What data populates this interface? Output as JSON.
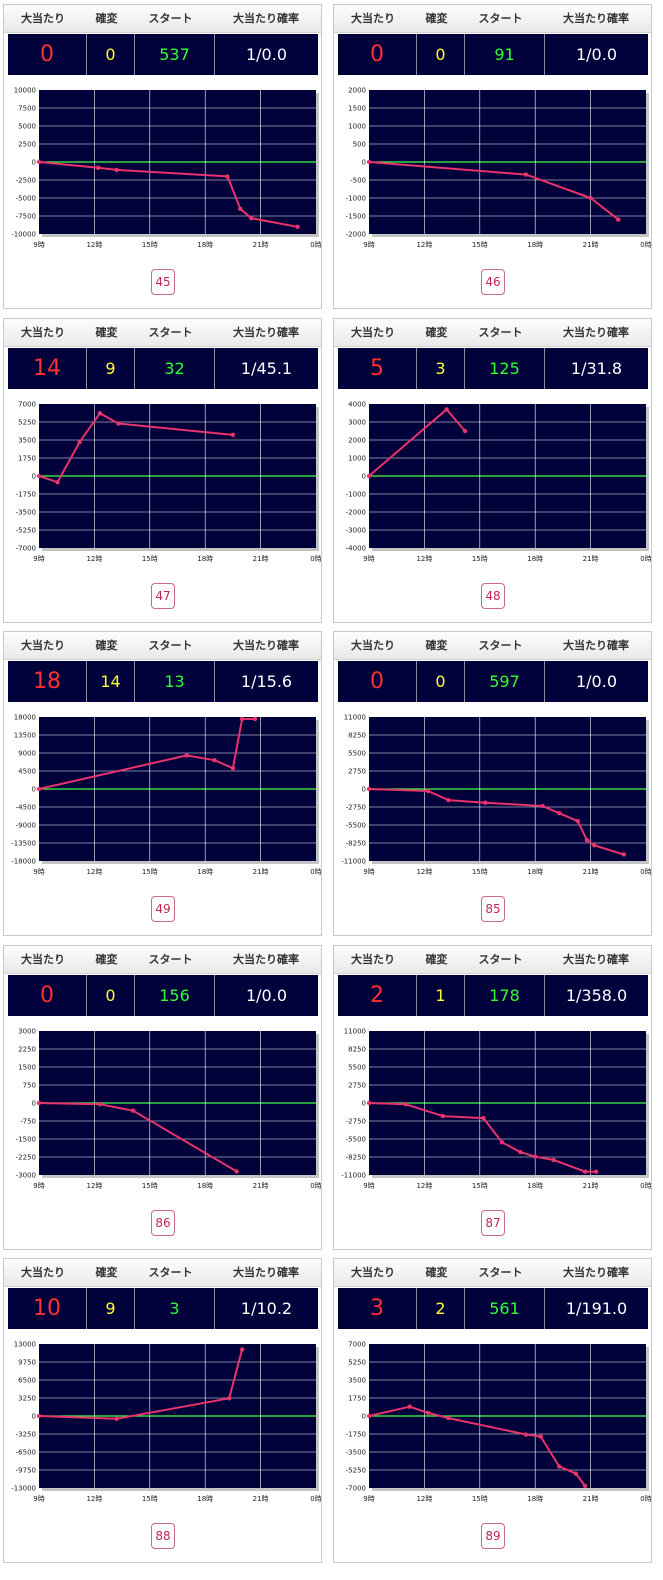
{
  "columns": {
    "hits": "大当たり",
    "kakuhen": "確変",
    "start": "スタート",
    "probability": "大当たり確率"
  },
  "x_tick_labels": [
    "9時",
    "12時",
    "15時",
    "18時",
    "21時",
    "0時"
  ],
  "colors": {
    "panel_bg": "#00003b",
    "hits": "#ff3030",
    "kakuhen": "#ffff33",
    "start": "#33ff33",
    "probability": "#ffffff",
    "series_line": "#e8336b",
    "zero_line": "#44ff44",
    "gridline": "#ffffff"
  },
  "machines": [
    {
      "number": "45",
      "hits": "0",
      "kakuhen": "0",
      "start": "537",
      "probability": "1/0.0",
      "chart_data": {
        "type": "line",
        "xlim": [
          9,
          24
        ],
        "ylim": [
          -10000,
          10000
        ],
        "y_ticks": [
          "10000",
          "7500",
          "5000",
          "2500",
          "0",
          "-2500",
          "-5000",
          "-7500",
          "-10000"
        ],
        "x": [
          9,
          12.2,
          13.2,
          19.2,
          19.9,
          20.5,
          23.0
        ],
        "y": [
          0,
          -800,
          -1100,
          -2000,
          -6500,
          -7800,
          -9000
        ]
      }
    },
    {
      "number": "46",
      "hits": "0",
      "kakuhen": "0",
      "start": "91",
      "probability": "1/0.0",
      "chart_data": {
        "type": "line",
        "xlim": [
          9,
          24
        ],
        "ylim": [
          -2000,
          2000
        ],
        "y_ticks": [
          "2000",
          "1500",
          "1000",
          "500",
          "0",
          "-500",
          "-1000",
          "-1500",
          "-2000"
        ],
        "x": [
          9,
          17.5,
          21.0,
          22.5
        ],
        "y": [
          0,
          -350,
          -1000,
          -1600
        ]
      }
    },
    {
      "number": "47",
      "hits": "14",
      "kakuhen": "9",
      "start": "32",
      "probability": "1/45.1",
      "chart_data": {
        "type": "line",
        "xlim": [
          9,
          24
        ],
        "ylim": [
          -7000,
          7000
        ],
        "y_ticks": [
          "7000",
          "5250",
          "3500",
          "1750",
          "0",
          "-1750",
          "-3500",
          "-5250",
          "-7000"
        ],
        "x": [
          9,
          10.0,
          11.2,
          12.3,
          13.3,
          19.5
        ],
        "y": [
          0,
          -600,
          3300,
          6100,
          5100,
          4000
        ]
      }
    },
    {
      "number": "48",
      "hits": "5",
      "kakuhen": "3",
      "start": "125",
      "probability": "1/31.8",
      "chart_data": {
        "type": "line",
        "xlim": [
          9,
          24
        ],
        "ylim": [
          -4000,
          4000
        ],
        "y_ticks": [
          "4000",
          "3000",
          "2000",
          "1000",
          "0",
          "-1000",
          "-2000",
          "-3000",
          "-4000"
        ],
        "x": [
          9,
          13.2,
          14.2
        ],
        "y": [
          0,
          3700,
          2500
        ]
      }
    },
    {
      "number": "49",
      "hits": "18",
      "kakuhen": "14",
      "start": "13",
      "probability": "1/15.6",
      "chart_data": {
        "type": "line",
        "xlim": [
          9,
          24
        ],
        "ylim": [
          -18000,
          18000
        ],
        "y_ticks": [
          "18000",
          "13500",
          "9000",
          "4500",
          "0",
          "-4500",
          "-9000",
          "-13500",
          "-18000"
        ],
        "x": [
          9,
          17.0,
          18.5,
          19.5,
          20.0,
          20.7
        ],
        "y": [
          0,
          8400,
          7200,
          5200,
          17500,
          17500
        ]
      }
    },
    {
      "number": "85",
      "hits": "0",
      "kakuhen": "0",
      "start": "597",
      "probability": "1/0.0",
      "chart_data": {
        "type": "line",
        "xlim": [
          9,
          24
        ],
        "ylim": [
          -11000,
          11000
        ],
        "y_ticks": [
          "11000",
          "8250",
          "5500",
          "2750",
          "0",
          "-2750",
          "-5500",
          "-8250",
          "-11000"
        ],
        "x": [
          9,
          12.2,
          13.3,
          15.3,
          18.4,
          19.3,
          20.3,
          20.8,
          21.2,
          22.8
        ],
        "y": [
          0,
          -300,
          -1700,
          -2100,
          -2600,
          -3700,
          -4900,
          -7800,
          -8600,
          -10000
        ]
      }
    },
    {
      "number": "86",
      "hits": "0",
      "kakuhen": "0",
      "start": "156",
      "probability": "1/0.0",
      "chart_data": {
        "type": "line",
        "xlim": [
          9,
          24
        ],
        "ylim": [
          -3000,
          3000
        ],
        "y_ticks": [
          "3000",
          "2250",
          "1500",
          "750",
          "0",
          "-750",
          "-1500",
          "-2250",
          "-3000"
        ],
        "x": [
          9,
          12.3,
          14.1,
          19.7
        ],
        "y": [
          0,
          -50,
          -320,
          -2850
        ]
      }
    },
    {
      "number": "87",
      "hits": "2",
      "kakuhen": "1",
      "start": "178",
      "probability": "1/358.0",
      "chart_data": {
        "type": "line",
        "xlim": [
          9,
          24
        ],
        "ylim": [
          -11000,
          11000
        ],
        "y_ticks": [
          "11000",
          "8250",
          "5500",
          "2750",
          "0",
          "-2750",
          "-5500",
          "-8250",
          "-11000"
        ],
        "x": [
          9,
          11.0,
          13.0,
          15.2,
          16.2,
          17.2,
          18.0,
          19.0,
          20.7,
          21.3
        ],
        "y": [
          0,
          -200,
          -2000,
          -2300,
          -6000,
          -7500,
          -8200,
          -8700,
          -10500,
          -10500
        ]
      }
    },
    {
      "number": "88",
      "hits": "10",
      "kakuhen": "9",
      "start": "3",
      "probability": "1/10.2",
      "chart_data": {
        "type": "line",
        "xlim": [
          9,
          24
        ],
        "ylim": [
          -13000,
          13000
        ],
        "y_ticks": [
          "13000",
          "9750",
          "6500",
          "3250",
          "0",
          "-3250",
          "-6500",
          "-9750",
          "-13000"
        ],
        "x": [
          9,
          13.2,
          19.3,
          20.0
        ],
        "y": [
          0,
          -500,
          3200,
          12000
        ]
      }
    },
    {
      "number": "89",
      "hits": "3",
      "kakuhen": "2",
      "start": "561",
      "probability": "1/191.0",
      "chart_data": {
        "type": "line",
        "xlim": [
          9,
          24
        ],
        "ylim": [
          -7000,
          7000
        ],
        "y_ticks": [
          "7000",
          "5250",
          "3500",
          "1750",
          "0",
          "-1750",
          "-3500",
          "-5250",
          "-7000"
        ],
        "x": [
          9,
          11.2,
          12.2,
          13.3,
          17.5,
          18.3,
          19.3,
          20.2,
          20.7
        ],
        "y": [
          0,
          900,
          300,
          -200,
          -1800,
          -2000,
          -4900,
          -5600,
          -6800
        ]
      }
    }
  ]
}
